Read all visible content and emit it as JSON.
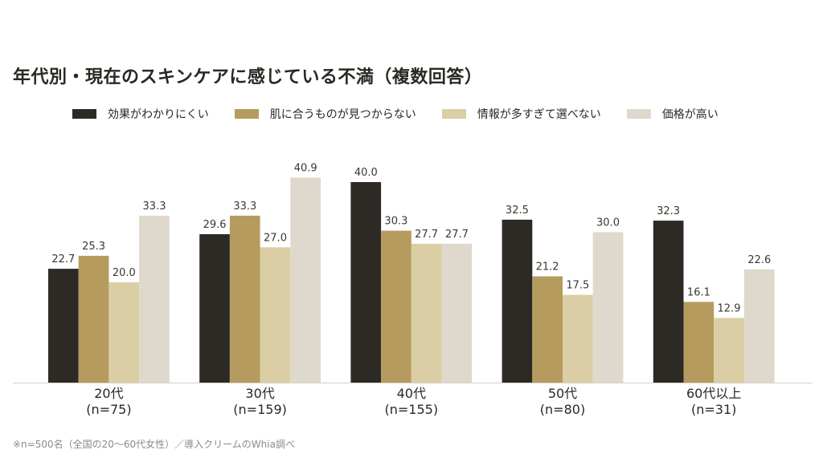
{
  "colors": [
    "#2d2a26",
    "#b59c5e",
    "#dbcea4",
    "#dfd8cc"
  ],
  "chart_data": {
    "type": "bar",
    "title": "年代別・現在のスキンケアに感じている不満（複数回答）",
    "xlabel": "",
    "ylabel": "",
    "ylim": [
      0,
      45
    ],
    "grid": false,
    "legend_position": "top",
    "categories": [
      {
        "label": "20代",
        "n": "(n=75)"
      },
      {
        "label": "30代",
        "n": "(n=159)"
      },
      {
        "label": "40代",
        "n": "(n=155)"
      },
      {
        "label": "50代",
        "n": "(n=80)"
      },
      {
        "label": "60代以上",
        "n": "(n=31)"
      }
    ],
    "series": [
      {
        "name": "効果がわかりにくい",
        "values": [
          22.7,
          29.6,
          40.0,
          32.5,
          32.3
        ]
      },
      {
        "name": "肌に合うものが見つからない",
        "values": [
          25.3,
          33.3,
          30.3,
          21.2,
          16.1
        ]
      },
      {
        "name": "情報が多すぎて選べない",
        "values": [
          20.0,
          27.0,
          27.7,
          17.5,
          12.9
        ]
      },
      {
        "name": "価格が高い",
        "values": [
          33.3,
          40.9,
          27.7,
          30.0,
          22.6
        ]
      }
    ]
  },
  "footnote": "※n=500名（全国の20〜60代女性）／導入クリームのWhia調べ"
}
